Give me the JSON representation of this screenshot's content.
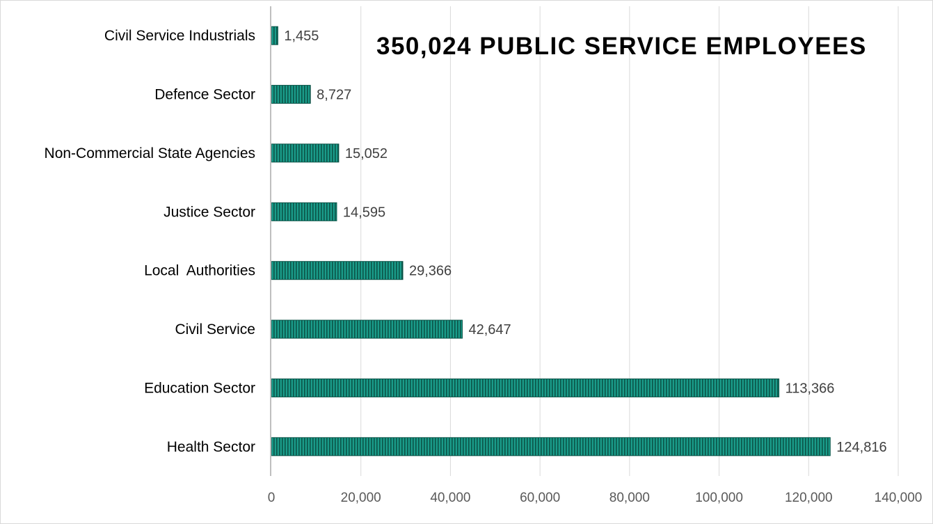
{
  "chart_data": {
    "type": "bar",
    "orientation": "horizontal",
    "title": "350,024 PUBLIC SERVICE EMPLOYEES",
    "categories": [
      "Civil Service Industrials",
      "Defence Sector",
      "Non-Commercial State Agencies",
      "Justice Sector",
      "Local  Authorities",
      "Civil Service",
      "Education Sector",
      "Health Sector"
    ],
    "values": [
      1455,
      8727,
      15052,
      14595,
      29366,
      42647,
      113366,
      124816
    ],
    "value_labels": [
      "1,455",
      "8,727",
      "15,052",
      "14,595",
      "29,366",
      "42,647",
      "113,366",
      "124,816"
    ],
    "xlim": [
      0,
      140000
    ],
    "x_ticks": [
      0,
      20000,
      40000,
      60000,
      80000,
      100000,
      120000,
      140000
    ],
    "x_tick_labels": [
      "0",
      "20,000",
      "40,000",
      "60,000",
      "80,000",
      "100,000",
      "120,000",
      "140,000"
    ],
    "xlabel": "",
    "ylabel": "",
    "grid": true,
    "legend": "none",
    "colors": {
      "bar_fill": "#1a9c8a",
      "bar_stripe": "#0b5448",
      "grid": "#d9d9d9",
      "axis": "#bfbfbf"
    }
  }
}
